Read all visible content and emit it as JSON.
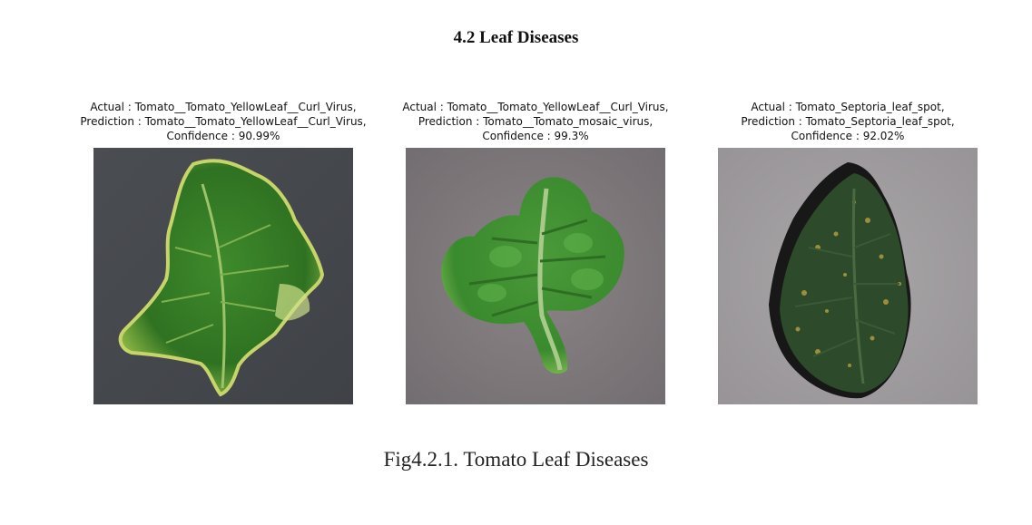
{
  "section_heading": "4.2 Leaf Diseases",
  "panels": [
    {
      "actual": "Actual : Tomato__Tomato_YellowLeaf__Curl_Virus,",
      "prediction": "Prediction : Tomato__Tomato_YellowLeaf__Curl_Virus,",
      "confidence": "Confidence : 90.99%"
    },
    {
      "actual": "Actual : Tomato__Tomato_YellowLeaf__Curl_Virus,",
      "prediction": "Prediction : Tomato__Tomato_mosaic_virus,",
      "confidence": "Confidence : 99.3%"
    },
    {
      "actual": "Actual : Tomato_Septoria_leaf_spot,",
      "prediction": "Prediction : Tomato_Septoria_leaf_spot,",
      "confidence": "Confidence : 92.02%"
    }
  ],
  "figure_caption": "Fig4.2.1. Tomato Leaf Diseases"
}
